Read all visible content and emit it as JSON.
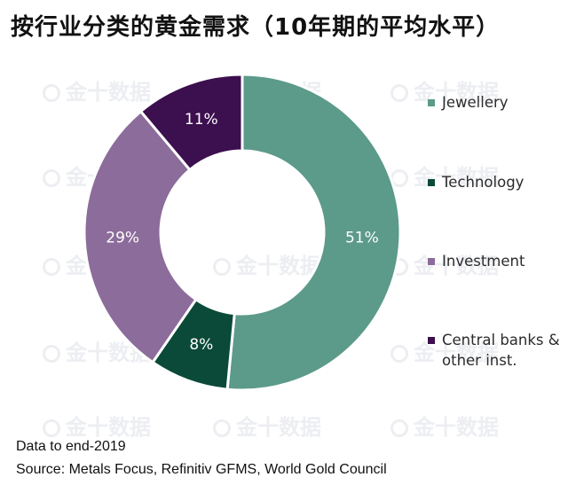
{
  "title": "按行业分类的黄金需求（10年期的平均水平）",
  "watermark": "金十数据",
  "chart_data": {
    "type": "pie",
    "donut": true,
    "title": "按行业分类的黄金需求（10年期的平均水平）",
    "categories": [
      "Jewellery",
      "Technology",
      "Investment",
      "Central banks & other inst."
    ],
    "values": [
      51,
      8,
      29,
      11
    ],
    "unit": "%",
    "data_labels": [
      "51%",
      "8%",
      "29%",
      "11%"
    ],
    "colors": [
      "#5c9a89",
      "#0b4a38",
      "#8c6c9a",
      "#3c0f4f"
    ],
    "legend_position": "right"
  },
  "legend": [
    {
      "label": "Jewellery",
      "color": "#5c9a89"
    },
    {
      "label": "Technology",
      "color": "#0b4a38"
    },
    {
      "label": "Investment",
      "color": "#8c6c9a"
    },
    {
      "label": "Central banks & other inst.",
      "color": "#3c0f4f"
    }
  ],
  "footnote": {
    "data_note": "Data to end-2019",
    "source": "Source: Metals Focus, Refinitiv GFMS, World Gold Council"
  }
}
